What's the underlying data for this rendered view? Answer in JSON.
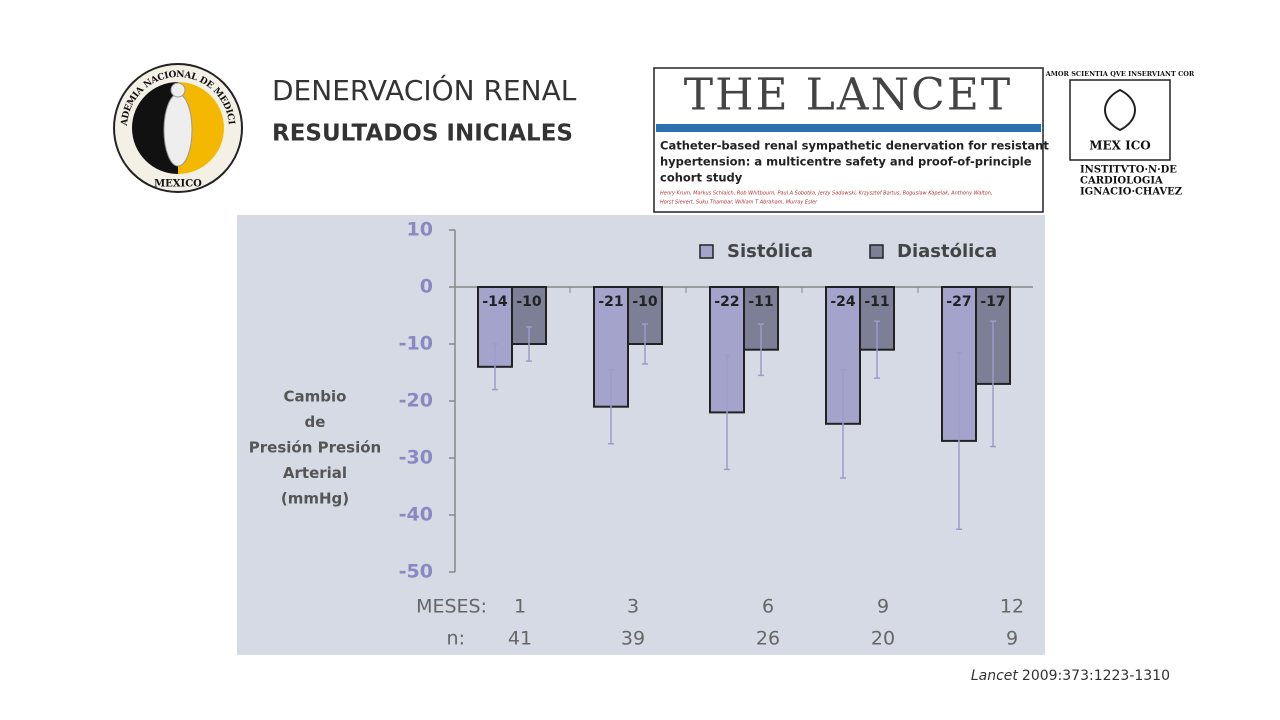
{
  "header": {
    "title": "DENERVACIÓN RENAL",
    "subtitle": "RESULTADOS INICIALES"
  },
  "logos": {
    "academia": {
      "top": "ACADEMIA NACIONAL DE MEDICINA",
      "bottom": "MEXICO"
    },
    "instituto": {
      "motto": "AMOR SCIENTIA QVE INSERVIANT COR",
      "emblem": "MEX ICO",
      "name": [
        "INSTITVTO·N·DE",
        "CARDIOLOGIA",
        "IGNACIO·CHAVEZ"
      ]
    }
  },
  "lancet": {
    "masthead": "THE LANCET",
    "headline": [
      "Catheter-based renal sympathetic denervation for resistant",
      "hypertension: a multicentre safety and proof-of-principle",
      "cohort study"
    ],
    "authors": [
      "Henry Krum, Markus Schlaich, Rob Whitbourn, Paul A Sobotka, Jerzy Sadowski, Krzysztof Bartus, Boguslaw Kapelak, Anthony Walton,",
      "Horst Sievert, Suku Thambar, William T Abraham, Murray Esler"
    ]
  },
  "chart_data": {
    "type": "bar",
    "ylabel": [
      "Cambio",
      "de",
      "Presión Presión",
      "Arterial",
      "(mmHg)"
    ],
    "category_label": "MESES:",
    "categories": [
      "1",
      "3",
      "6",
      "9",
      "12"
    ],
    "n_label": "n:",
    "n": [
      41,
      39,
      26,
      20,
      9
    ],
    "series": [
      {
        "name": "Sistólica",
        "color": "#a3a3cc",
        "values": [
          -14,
          -21,
          -22,
          -24,
          -27
        ],
        "errors": [
          4,
          6.5,
          10,
          9.5,
          15.5
        ]
      },
      {
        "name": "Diastólica",
        "color": "#7d7f97",
        "values": [
          -10,
          -10,
          -11,
          -11,
          -17
        ],
        "errors": [
          3,
          3.5,
          4.5,
          5,
          11
        ]
      }
    ],
    "ylim": [
      -50,
      10
    ],
    "yticks": [
      10,
      0,
      -10,
      -20,
      -30,
      -40,
      -50
    ],
    "legend": "top-right",
    "grid": false
  },
  "citation": {
    "journal": "Lancet",
    "ref": "2009:373:1223-1310"
  }
}
